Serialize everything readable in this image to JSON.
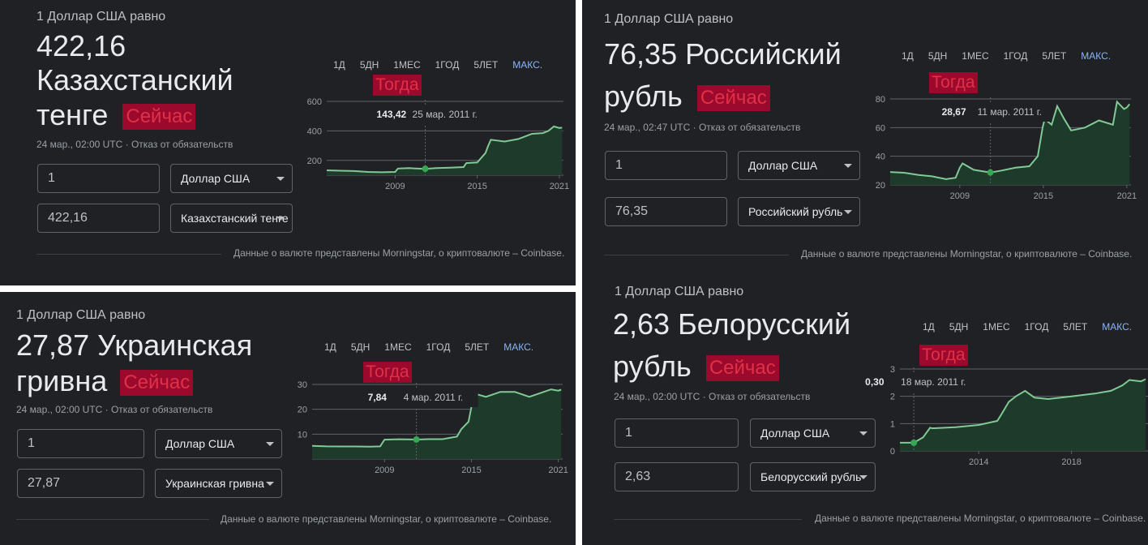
{
  "tabs": [
    "1Д",
    "5ДН",
    "1МЕС",
    "1ГОД",
    "5ЛЕТ",
    "МАКС."
  ],
  "now_label": "Сейчас",
  "then_label": "Тогда",
  "footer": "Данные о валюте представлены Morningstar, о криптовалюте – Coinbase.",
  "panels": [
    {
      "equals": "1 Доллар США равно",
      "value_line1": "422,16",
      "value_line2": "Казахстанский",
      "value_line3": "тенге",
      "meta": "24 мар., 02:00 UTC · Отказ от обязательств",
      "amount_from": "1",
      "currency_from": "Доллар США",
      "amount_to": "422,16",
      "currency_to": "Казахстанский тенге",
      "tooltip_value": "143,42",
      "tooltip_date": "25 мар. 2011 г."
    },
    {
      "equals": "1 Доллар США равно",
      "value_line1": "76,35 Российский",
      "value_line2": "рубль",
      "meta": "24 мар., 02:47 UTC · Отказ от обязательств",
      "amount_from": "1",
      "currency_from": "Доллар США",
      "amount_to": "76,35",
      "currency_to": "Российский рубль",
      "tooltip_value": "28,67",
      "tooltip_date": "11 мар. 2011 г."
    },
    {
      "equals": "1 Доллар США равно",
      "value_line1": "27,87 Украинская",
      "value_line2": "гривна",
      "meta": "24 мар., 02:00 UTC · Отказ от обязательств",
      "amount_from": "1",
      "currency_from": "Доллар США",
      "amount_to": "27,87",
      "currency_to": "Украинская гривна",
      "tooltip_value": "7,84",
      "tooltip_date": "4 мар. 2011 г."
    },
    {
      "equals": "1 Доллар США равно",
      "value_line1": "2,63 Белорусский",
      "value_line2": "рубль",
      "meta": "24 мар., 02:00 UTC · Отказ от обязательств",
      "amount_from": "1",
      "currency_from": "Доллар США",
      "amount_to": "2,63",
      "currency_to": "Белорусский рубль",
      "tooltip_value": "0,30",
      "tooltip_date": "18 мар. 2011 г."
    }
  ],
  "colors": {
    "line": "#81c995",
    "area": "#1e3a2a",
    "grid": "#5f6368",
    "active_tab": "#8ab4f8",
    "tag_bg": "#9b0a2c",
    "tag_text": "#e03048"
  },
  "chart_data": [
    {
      "type": "line",
      "title": "",
      "xlabel": "",
      "ylabel": "",
      "x_tick_labels": [
        "2009",
        "2015",
        "2021"
      ],
      "x_ticks": [
        2009,
        2015,
        2021
      ],
      "y_ticks": [
        200,
        400,
        600
      ],
      "xlim": [
        2004,
        2021.3
      ],
      "ylim": [
        100,
        600
      ],
      "series": [
        {
          "x": [
            2004,
            2005,
            2006,
            2007,
            2008,
            2009,
            2009.2,
            2010,
            2011.2,
            2012,
            2013,
            2014,
            2014.2,
            2015,
            2015.6,
            2015.8,
            2016,
            2017,
            2018,
            2019,
            2019.8,
            2020.2,
            2020.6,
            2021,
            2021.2
          ],
          "y": [
            133,
            130,
            128,
            122,
            120,
            122,
            145,
            148,
            143,
            148,
            151,
            155,
            182,
            186,
            250,
            300,
            340,
            328,
            345,
            380,
            385,
            400,
            430,
            420,
            422.16
          ]
        }
      ],
      "tooltip_x": 2011.2,
      "tooltip_y": 143.42
    },
    {
      "type": "line",
      "title": "",
      "xlabel": "",
      "ylabel": "",
      "x_tick_labels": [
        "2009",
        "2015",
        "2021"
      ],
      "x_ticks": [
        2009,
        2015,
        2021
      ],
      "y_ticks": [
        20,
        40,
        60,
        80
      ],
      "xlim": [
        2004,
        2021.3
      ],
      "ylim": [
        20,
        80
      ],
      "series": [
        {
          "x": [
            2004,
            2005,
            2006,
            2007,
            2008,
            2008.7,
            2009,
            2009.2,
            2010,
            2011.2,
            2012,
            2013,
            2014,
            2014.6,
            2014.95,
            2015.1,
            2015.6,
            2016,
            2016.5,
            2017,
            2018,
            2019,
            2020,
            2020.3,
            2020.8,
            2021,
            2021.2
          ],
          "y": [
            29,
            28.5,
            27,
            26,
            24,
            25,
            32,
            35,
            30.5,
            28.67,
            30,
            32,
            33,
            40,
            60,
            66,
            62,
            75,
            66,
            58,
            60,
            65,
            62,
            78,
            73,
            74,
            76.35
          ]
        }
      ],
      "tooltip_x": 2011.2,
      "tooltip_y": 28.67
    },
    {
      "type": "line",
      "title": "",
      "xlabel": "",
      "ylabel": "",
      "x_tick_labels": [
        "2009",
        "2015",
        "2021"
      ],
      "x_ticks": [
        2009,
        2015,
        2021
      ],
      "y_ticks": [
        10,
        20,
        30
      ],
      "xlim": [
        2004,
        2021.3
      ],
      "ylim": [
        0,
        30
      ],
      "series": [
        {
          "x": [
            2004,
            2005,
            2006,
            2007,
            2008,
            2008.7,
            2009,
            2010,
            2011.2,
            2012,
            2013,
            2014,
            2014.3,
            2014.8,
            2015.1,
            2015.4,
            2016,
            2017,
            2018,
            2019,
            2020,
            2020.5,
            2021,
            2021.2
          ],
          "y": [
            5.3,
            5.1,
            5.05,
            5.05,
            5,
            5.1,
            7.8,
            7.95,
            7.84,
            7.99,
            8,
            9,
            12,
            15,
            24,
            26,
            25,
            27,
            27,
            25,
            27,
            28,
            27.5,
            27.87
          ]
        }
      ],
      "tooltip_x": 2011.2,
      "tooltip_y": 7.84
    },
    {
      "type": "line",
      "title": "",
      "xlabel": "",
      "ylabel": "",
      "x_tick_labels": [
        "2014",
        "2018"
      ],
      "x_ticks": [
        2014,
        2018
      ],
      "y_ticks": [
        0,
        1,
        2,
        3
      ],
      "xlim": [
        2010.6,
        2021.3
      ],
      "ylim": [
        0,
        3
      ],
      "series": [
        {
          "x": [
            2010.6,
            2011,
            2011.2,
            2011.6,
            2011.9,
            2012,
            2013,
            2014,
            2014.8,
            2014.95,
            2015.3,
            2015.6,
            2016,
            2016.4,
            2017,
            2018,
            2019,
            2019.7,
            2020.2,
            2020.5,
            2021,
            2021.2
          ],
          "y": [
            0.3,
            0.3,
            0.3,
            0.5,
            0.85,
            0.83,
            0.87,
            0.95,
            1.1,
            1.3,
            1.8,
            2.0,
            2.2,
            1.95,
            1.9,
            2.0,
            2.1,
            2.2,
            2.4,
            2.6,
            2.55,
            2.63
          ]
        }
      ],
      "tooltip_x": 2011.2,
      "tooltip_y": 0.3
    }
  ]
}
